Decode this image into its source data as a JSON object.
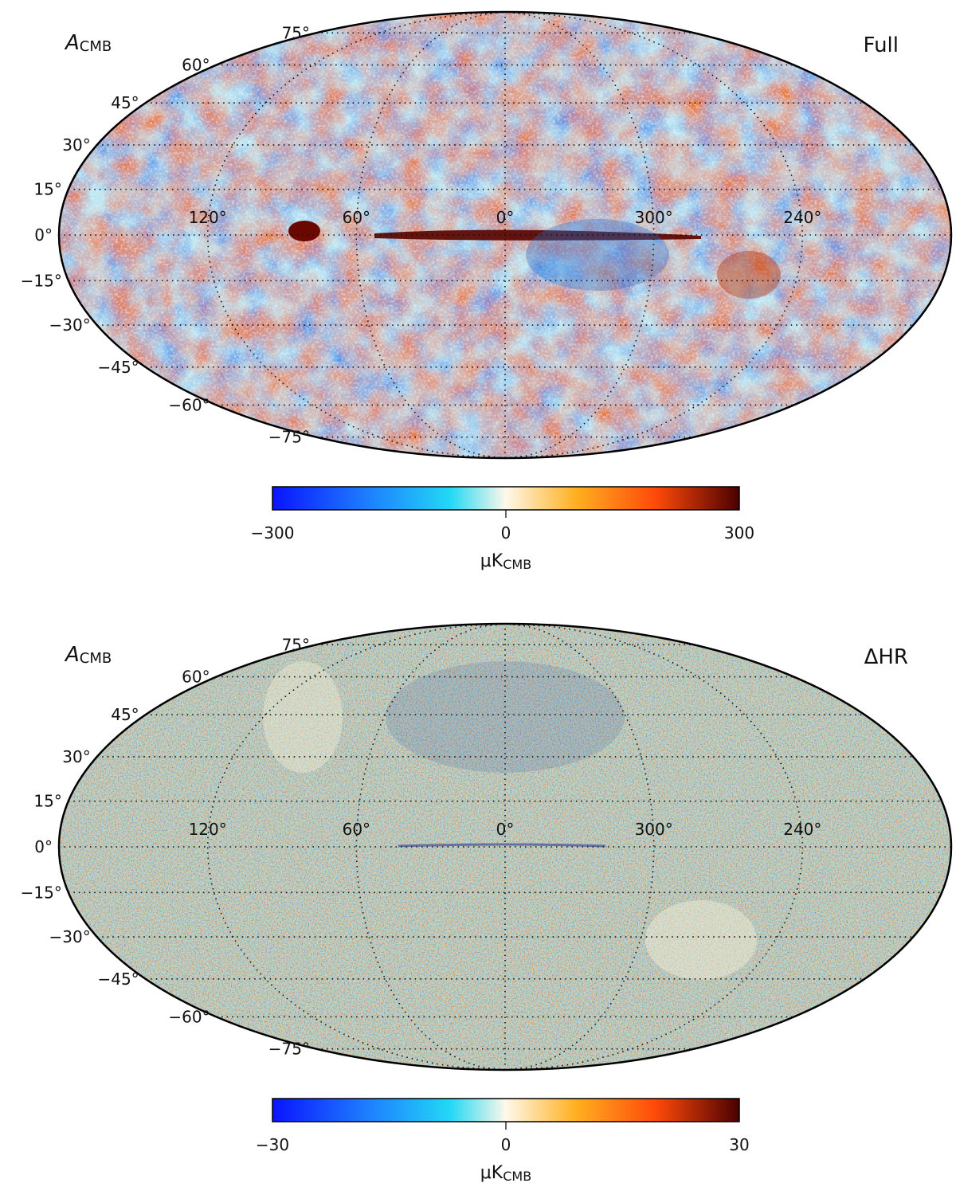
{
  "panels": [
    {
      "id": "top",
      "quantity": "A",
      "quantity_sub": "CMB",
      "label": "Full",
      "latitude_labels": [
        "75°",
        "60°",
        "45°",
        "30°",
        "15°",
        "0°",
        "−15°",
        "−30°",
        "−45°",
        "−60°",
        "−75°"
      ],
      "longitude_labels": [
        "120°",
        "60°",
        "0°",
        "300°",
        "240°"
      ],
      "colorbar": {
        "min": -300,
        "max": 300,
        "ticks": [
          "−300",
          "0",
          "300"
        ],
        "unit": "μK",
        "unit_sub": "CMB"
      },
      "colors": {
        "low": "#0a1bff",
        "mid_low": "#18b3f0",
        "mid": "#fff3e0",
        "mid_high": "#ff7a1e",
        "high": "#4a0000"
      }
    },
    {
      "id": "bottom",
      "quantity": "A",
      "quantity_sub": "CMB",
      "label": "ΔHR",
      "latitude_labels": [
        "75°",
        "60°",
        "45°",
        "30°",
        "15°",
        "0°",
        "−15°",
        "−30°",
        "−45°",
        "−60°",
        "−75°"
      ],
      "longitude_labels": [
        "120°",
        "60°",
        "0°",
        "300°",
        "240°"
      ],
      "colorbar": {
        "min": -30,
        "max": 30,
        "ticks": [
          "−30",
          "0",
          "30"
        ],
        "unit": "μK",
        "unit_sub": "CMB"
      },
      "colors": {
        "low": "#0a1bff",
        "mid_low": "#18b3f0",
        "mid": "#fff3e0",
        "mid_high": "#ff7a1e",
        "high": "#4a0000"
      }
    }
  ],
  "projection": "Mollweide"
}
